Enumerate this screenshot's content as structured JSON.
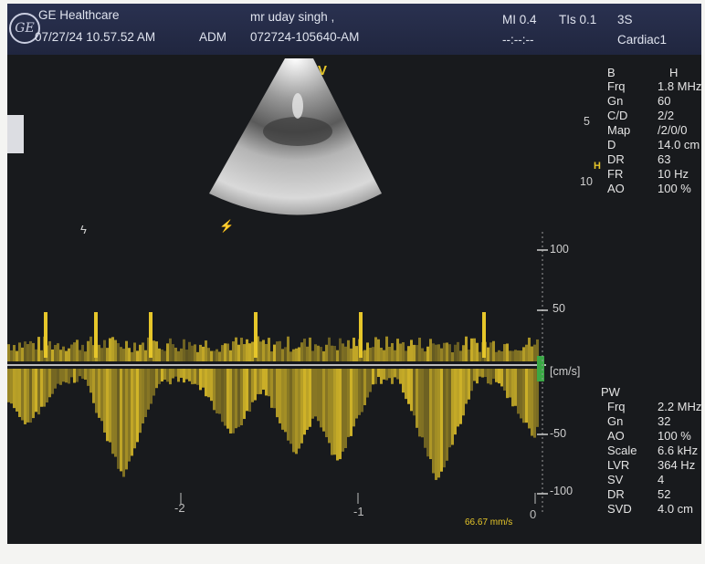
{
  "header": {
    "logo": "GE",
    "brand": "GE Healthcare",
    "datetime": "07/27/24 10.57.52 AM",
    "operator": "ADM",
    "patient": "mr uday singh ,",
    "exam_id": "072724-105640-AM",
    "mi": "MI 0.4",
    "tis": "TIs 0.1",
    "probe": "3S",
    "placeholder": "--:--:--",
    "preset": "Cardiac1"
  },
  "bmode": {
    "title_left": "B",
    "title_right": "H",
    "params": [
      {
        "label": "Frq",
        "value": "1.8 MHz"
      },
      {
        "label": "Gn",
        "value": "60"
      },
      {
        "label": "C/D",
        "value": "2/2"
      },
      {
        "label": "Map",
        "value": "/2/0/0"
      },
      {
        "label": "D",
        "value": "14.0 cm"
      },
      {
        "label": "DR",
        "value": "63"
      },
      {
        "label": "FR",
        "value": "10 Hz"
      },
      {
        "label": "AO",
        "value": "100 %"
      }
    ],
    "depth_scale": [
      "5",
      "10"
    ],
    "depth_marker": "H",
    "sector_label": "V"
  },
  "doppler": {
    "title": "PW",
    "params": [
      {
        "label": "Frq",
        "value": "2.2 MHz"
      },
      {
        "label": "Gn",
        "value": "32"
      },
      {
        "label": "AO",
        "value": "100 %"
      },
      {
        "label": "Scale",
        "value": "6.6 kHz"
      },
      {
        "label": "LVR",
        "value": "364 Hz"
      },
      {
        "label": "SV",
        "value": "4"
      },
      {
        "label": "DR",
        "value": "52"
      },
      {
        "label": "SVD",
        "value": "4.0 cm"
      }
    ],
    "velocity_ticks": [
      "100",
      "50",
      "-50",
      "-100"
    ],
    "unit": "[cm/s]",
    "time_ticks": [
      "-2",
      "-1",
      "0"
    ],
    "sweep_speed": "66.67 mm/s",
    "colors": {
      "spectrum": "#e6c62a",
      "baseline_marker": "#3aa845",
      "header": "#2a3150"
    }
  }
}
